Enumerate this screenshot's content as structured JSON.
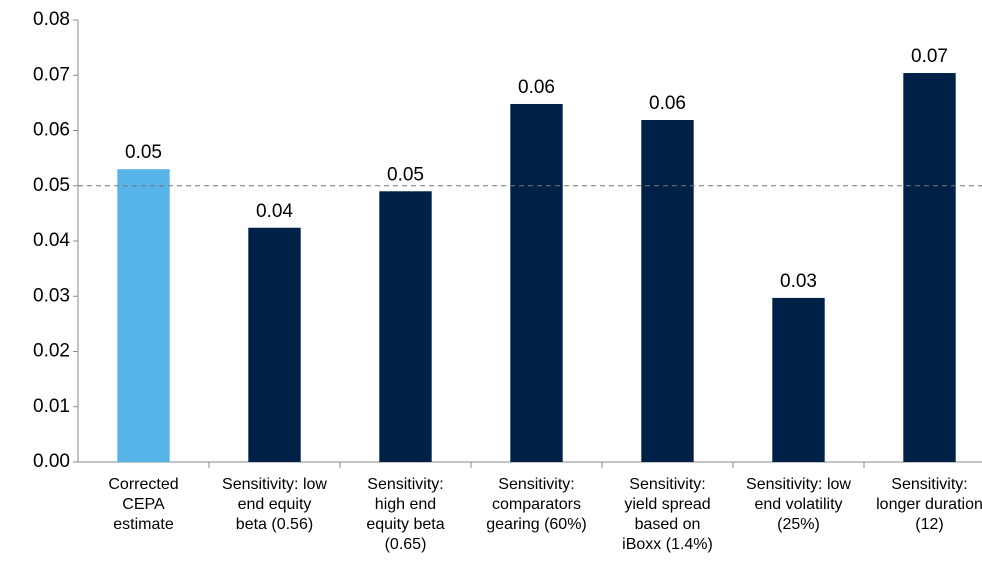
{
  "chart_data": {
    "type": "bar",
    "categories": [
      "Corrected\nCEPA\nestimate",
      "Sensitivity: low\nend equity\nbeta (0.56)",
      "Sensitivity:\nhigh end\nequity beta\n(0.65)",
      "Sensitivity:\ncomparators\ngearing (60%)",
      "Sensitivity:\nyield spread\nbased on\niBoxx (1.4%)",
      "Sensitivity: low\nend volatility\n(25%)",
      "Sensitivity:\nlonger duration\n(12)"
    ],
    "values": [
      0.053,
      0.0424,
      0.049,
      0.0648,
      0.0619,
      0.0297,
      0.0704
    ],
    "value_labels": [
      "0.05",
      "0.04",
      "0.05",
      "0.06",
      "0.06",
      "0.03",
      "0.07"
    ],
    "colors": [
      "#56b4e9",
      "#002147",
      "#002147",
      "#002147",
      "#002147",
      "#002147",
      "#002147"
    ],
    "ylim": [
      0,
      0.08
    ],
    "yticks": [
      {
        "value": 0,
        "label": "0.00"
      },
      0.01,
      0.02,
      0.03,
      0.04,
      0.05,
      0.06,
      0.07,
      0.08
    ],
    "reference_line": 0.05
  }
}
